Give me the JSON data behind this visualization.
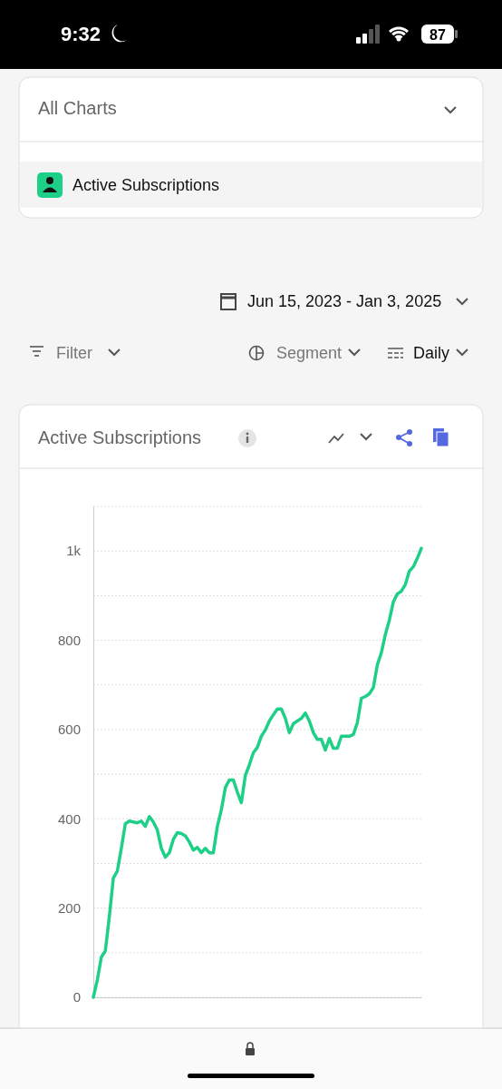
{
  "chart_data": {
    "type": "line",
    "title": "Active Subscriptions",
    "subtitle": "Jun 15, 2023 - Jan 3, 2025",
    "annotations": [
      "9:32",
      "87",
      "All Charts",
      "Active Subscriptions",
      "Filter",
      "Segment",
      "Daily"
    ],
    "categories": [
      null,
      null,
      null,
      null,
      null,
      null,
      null,
      null,
      null,
      null,
      null,
      null,
      null,
      null,
      null,
      null,
      null,
      null,
      null,
      null,
      null,
      null,
      null,
      null,
      null,
      null,
      null,
      null,
      null,
      null,
      null,
      null,
      null,
      null,
      null,
      null,
      null,
      null,
      null,
      null,
      null,
      null,
      null,
      null,
      null,
      null,
      null,
      null,
      null,
      null,
      null,
      null,
      null,
      null,
      null,
      null,
      null,
      null,
      null,
      null,
      null,
      null,
      null,
      null,
      null,
      null,
      null,
      null,
      null,
      null,
      null,
      null,
      null,
      null,
      null,
      null,
      null,
      null,
      null,
      null,
      null,
      null,
      null
    ],
    "series": [
      {
        "color": "#1ed087",
        "values": [
          0,
          39,
          90,
          104,
          181,
          267,
          283,
          334,
          389,
          395,
          393,
          391,
          395,
          383,
          405,
          393,
          375,
          334,
          314,
          324,
          354,
          369,
          367,
          362,
          348,
          330,
          336,
          324,
          334,
          324,
          324,
          383,
          420,
          470,
          487,
          487,
          460,
          436,
          497,
          521,
          548,
          560,
          585,
          599,
          619,
          633,
          646,
          646,
          625,
          593,
          613,
          619,
          625,
          637,
          619,
          593,
          578,
          578,
          554,
          580,
          558,
          558,
          585,
          585,
          585,
          589,
          615,
          670,
          674,
          680,
          694,
          745,
          772,
          813,
          845,
          886,
          904,
          910,
          925,
          955,
          965,
          984,
          1006
        ]
      }
    ],
    "ylim": [
      0,
      1100
    ],
    "yticks": [
      0,
      {
        "value": 100,
        "label": null
      },
      200,
      {
        "value": 300,
        "label": null
      },
      400,
      {
        "value": 500,
        "label": null
      },
      600,
      {
        "value": 700,
        "label": null
      },
      800,
      {
        "value": 900,
        "label": null
      },
      {
        "value": 1000,
        "label": "1k"
      },
      {
        "value": 1100,
        "label": null
      }
    ],
    "grid": "y",
    "marker": "none",
    "line_style": "solid",
    "tick_labels": "y"
  }
}
